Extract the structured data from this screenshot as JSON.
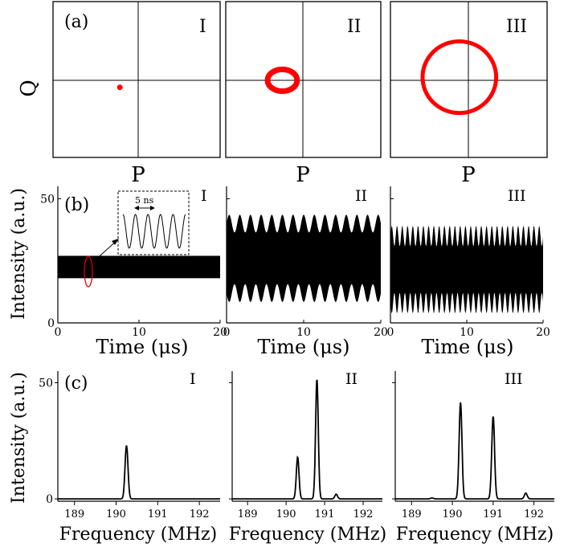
{
  "chart_data": [
    {
      "type": "scatter",
      "panel_label": "(a)",
      "roman_labels": [
        "I",
        "II",
        "III"
      ],
      "xlabel": "P",
      "ylabel": "Q",
      "subplots": [
        {
          "id": "I",
          "shape": "point",
          "center": [
            -0.2,
            -0.1
          ],
          "radius_x": 0.0,
          "radius_y": 0.0
        },
        {
          "id": "II",
          "shape": "ring",
          "center": [
            -0.27,
            -0.01
          ],
          "radius_x": 0.19,
          "radius_y": 0.14
        },
        {
          "id": "III",
          "shape": "ring",
          "center": [
            -0.12,
            0.03
          ],
          "radius_x": 0.47,
          "radius_y": 0.46
        }
      ],
      "xlim": [
        -1,
        1
      ],
      "ylim": [
        -1,
        1
      ],
      "color": "#ff0000"
    },
    {
      "type": "area",
      "panel_label": "(b)",
      "roman_labels": [
        "I",
        "II",
        "III"
      ],
      "xlabel": "Time (μs)",
      "ylabel": "Intensity (a.u.)",
      "xlim": [
        0,
        20
      ],
      "ylim": [
        0,
        55
      ],
      "x_ticks": [
        0,
        10,
        20
      ],
      "y_ticks": [
        0,
        50
      ],
      "series": [
        {
          "id": "I",
          "upper_mean": 27,
          "lower_mean": 18,
          "mod_amp": 0.0,
          "period": 0
        },
        {
          "id": "II",
          "upper_mean": 40,
          "lower_mean": 12,
          "mod_amp": 3.6,
          "period": 1.38
        },
        {
          "id": "III",
          "upper_mean": 35,
          "lower_mean": 8,
          "mod_amp": 4.2,
          "period": 0.69
        }
      ],
      "inset": {
        "label": "5 ns",
        "cycles": 5
      },
      "color": "#000000",
      "highlight_color": "#dd0000"
    },
    {
      "type": "line",
      "panel_label": "(c)",
      "roman_labels": [
        "I",
        "II",
        "III"
      ],
      "xlabel": "Frequency (MHz)",
      "ylabel": "Intensity (a.u.)",
      "xlim": [
        188.6,
        192.5
      ],
      "ylim": [
        -1,
        55
      ],
      "x_ticks": [
        189,
        190,
        191,
        192
      ],
      "y_ticks": [
        0,
        50
      ],
      "series": [
        {
          "id": "I",
          "peaks": [
            [
              190.25,
              23
            ]
          ]
        },
        {
          "id": "II",
          "peaks": [
            [
              190.3,
              18
            ],
            [
              190.8,
              51.5
            ],
            [
              191.3,
              2
            ]
          ]
        },
        {
          "id": "III",
          "peaks": [
            [
              189.5,
              0.4
            ],
            [
              190.2,
              41.5
            ],
            [
              191.0,
              35.5
            ],
            [
              191.8,
              2.5
            ]
          ]
        }
      ],
      "color": "#000000"
    }
  ]
}
